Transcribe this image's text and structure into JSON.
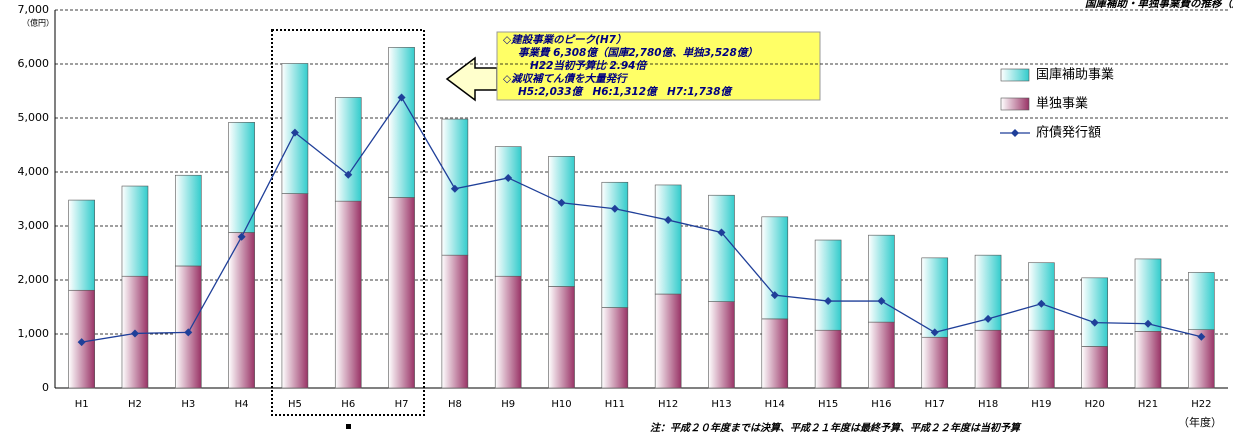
{
  "chart_data": {
    "type": "bar",
    "stacked": true,
    "title": "国庫補助・単独事業費の推移（府債発行額）",
    "y_unit": "（億円）",
    "x_unit": "（年度）",
    "note": "注：平成２０年度までは決算、平成２１年度は最終予算、平成２２年度は当初予算",
    "annotations": [
      "◇建設事業のピーク(H7）",
      "事業費 6,308億（国庫2,780億、単独3,528億）",
      "H22当初予算比 2.94倍",
      "◇減収補てん債を大量発行",
      "H5:2,033億　H6:1,312億　H7:1,738億"
    ],
    "categories": [
      "H1",
      "H2",
      "H3",
      "H4",
      "H5",
      "H6",
      "H7",
      "H8",
      "H9",
      "H10",
      "H11",
      "H12",
      "H13",
      "H14",
      "H15",
      "H16",
      "H17",
      "H18",
      "H19",
      "H20",
      "H21",
      "H22"
    ],
    "series": [
      {
        "name": "国庫補助事業",
        "color": "#33cccc",
        "values": [
          1670,
          1670,
          1680,
          2040,
          2410,
          1920,
          2780,
          2520,
          2400,
          2410,
          2320,
          2020,
          1970,
          1890,
          1670,
          1610,
          1470,
          1390,
          1250,
          1270,
          1340,
          1060
        ]
      },
      {
        "name": "単独事業",
        "color": "#993366",
        "values": [
          1810,
          2070,
          2260,
          2880,
          3600,
          3460,
          3528,
          2460,
          2070,
          1880,
          1490,
          1740,
          1600,
          1280,
          1070,
          1220,
          940,
          1070,
          1070,
          770,
          1050,
          1080
        ]
      },
      {
        "name": "府債発行額",
        "type": "line",
        "color": "#1f3f99",
        "values": [
          850,
          1010,
          1030,
          2800,
          4730,
          3950,
          5380,
          3690,
          3890,
          3430,
          3320,
          3110,
          2880,
          1720,
          1610,
          1610,
          1030,
          1280,
          1560,
          1210,
          1190,
          950
        ]
      }
    ],
    "ylim": [
      0,
      7000
    ],
    "yticks": [
      0,
      {
        "value": 1000,
        "label": "1,000"
      },
      {
        "value": 2000,
        "label": "2,000"
      },
      {
        "value": 3000,
        "label": "3,000"
      },
      {
        "value": 4000,
        "label": "4,000"
      },
      {
        "value": 5000,
        "label": "5,000"
      },
      {
        "value": 6000,
        "label": "6,000"
      },
      {
        "value": 7000,
        "label": "7,000"
      }
    ],
    "grid": true
  }
}
